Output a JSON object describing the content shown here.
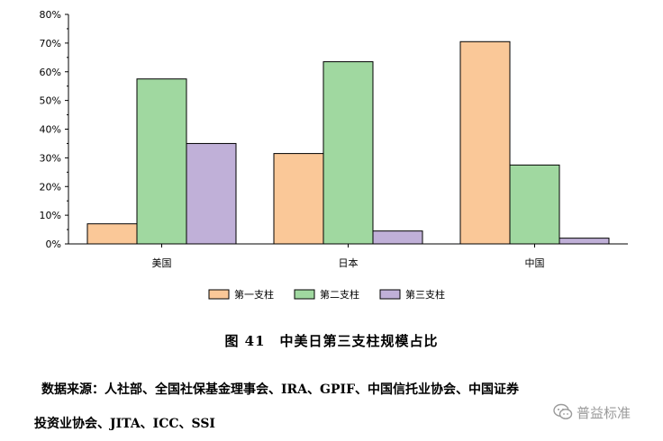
{
  "chart_data": {
    "type": "bar",
    "categories": [
      "美国",
      "日本",
      "中国"
    ],
    "series": [
      {
        "name": "第一支柱",
        "color": "#FAC898",
        "values": [
          7,
          31.5,
          70.5
        ]
      },
      {
        "name": "第二支柱",
        "color": "#A0D8A0",
        "values": [
          57.5,
          63.5,
          27.5
        ]
      },
      {
        "name": "第三支柱",
        "color": "#C0B0D8",
        "values": [
          35,
          4.5,
          2
        ]
      }
    ],
    "y_ticks": [
      "0%",
      "10%",
      "20%",
      "30%",
      "40%",
      "50%",
      "60%",
      "70%",
      "80%"
    ],
    "ylim": [
      0,
      80
    ],
    "legend_position": "bottom-center",
    "grid": false
  },
  "caption": "图 41　中美日第三支柱规模占比",
  "source": {
    "line1": "数据来源：人社部、全国社保基金理事会、IRA、GPIF、中国信托业协会、中国证券",
    "line2": "投资业协会、JITA、ICC、SSI"
  },
  "watermark": {
    "text": "普益标准",
    "icon": "wechat-icon"
  }
}
